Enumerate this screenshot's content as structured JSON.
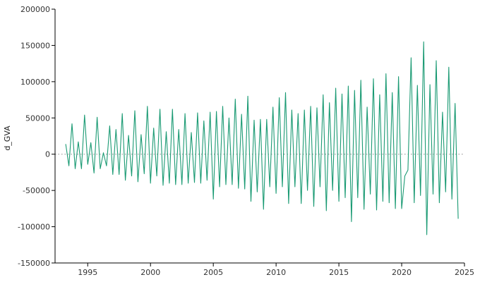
{
  "chart_data": {
    "type": "line",
    "title": "",
    "xlabel": "",
    "ylabel": "d_GVA",
    "xlim": [
      1992.4,
      2025.0
    ],
    "ylim": [
      -150000,
      200000
    ],
    "xticks": [
      1995,
      2000,
      2005,
      2010,
      2015,
      2020,
      2025
    ],
    "yticks": [
      -150000,
      -100000,
      -50000,
      0,
      50000,
      100000,
      150000,
      200000
    ],
    "zero_line": true,
    "grid": false,
    "line_color": "#1a9a73",
    "series": [
      {
        "x": [
          1993.25,
          1993.5,
          1993.75,
          1994.0,
          1994.25,
          1994.5,
          1994.75,
          1995.0,
          1995.25,
          1995.5,
          1995.75,
          1996.0,
          1996.25,
          1996.5,
          1996.75,
          1997.0,
          1997.25,
          1997.5,
          1997.75,
          1998.0,
          1998.25,
          1998.5,
          1998.75,
          1999.0,
          1999.25,
          1999.5,
          1999.75,
          2000.0,
          2000.25,
          2000.5,
          2000.75,
          2001.0,
          2001.25,
          2001.5,
          2001.75,
          2002.0,
          2002.25,
          2002.5,
          2002.75,
          2003.0,
          2003.25,
          2003.5,
          2003.75,
          2004.0,
          2004.25,
          2004.5,
          2004.75,
          2005.0,
          2005.25,
          2005.5,
          2005.75,
          2006.0,
          2006.25,
          2006.5,
          2006.75,
          2007.0,
          2007.25,
          2007.5,
          2007.75,
          2008.0,
          2008.25,
          2008.5,
          2008.75,
          2009.0,
          2009.25,
          2009.5,
          2009.75,
          2010.0,
          2010.25,
          2010.5,
          2010.75,
          2011.0,
          2011.25,
          2011.5,
          2011.75,
          2012.0,
          2012.25,
          2012.5,
          2012.75,
          2013.0,
          2013.25,
          2013.5,
          2013.75,
          2014.0,
          2014.25,
          2014.5,
          2014.75,
          2015.0,
          2015.25,
          2015.5,
          2015.75,
          2016.0,
          2016.25,
          2016.5,
          2016.75,
          2017.0,
          2017.25,
          2017.5,
          2017.75,
          2018.0,
          2018.25,
          2018.5,
          2018.75,
          2019.0,
          2019.25,
          2019.5,
          2019.75,
          2020.0,
          2020.25,
          2020.5,
          2020.75,
          2021.0,
          2021.25,
          2021.5,
          2021.75,
          2022.0,
          2022.25,
          2022.5,
          2022.75,
          2023.0,
          2023.25,
          2023.5,
          2023.75,
          2024.0,
          2024.25,
          2024.5
        ],
        "values": [
          14000,
          -16000,
          42000,
          -20000,
          17000,
          -20000,
          54000,
          -14000,
          16000,
          -26000,
          51000,
          -20000,
          2000,
          -16000,
          39000,
          -28000,
          34000,
          -28000,
          56000,
          -36000,
          26000,
          -30000,
          60000,
          -38000,
          27000,
          -27000,
          66000,
          -40000,
          36000,
          -30000,
          62000,
          -43000,
          31000,
          -40000,
          62000,
          -42000,
          34000,
          -42000,
          56000,
          -40000,
          30000,
          -39000,
          57000,
          -40000,
          46000,
          -36000,
          58000,
          -62000,
          59000,
          -45000,
          66000,
          -42000,
          50000,
          -42000,
          76000,
          -47000,
          55000,
          -48000,
          80000,
          -65000,
          47000,
          -52000,
          48000,
          -76000,
          48000,
          -45000,
          65000,
          -54000,
          78000,
          -45000,
          85000,
          -68000,
          61000,
          -45000,
          56000,
          -68000,
          61000,
          -50000,
          66000,
          -72000,
          64000,
          -45000,
          82000,
          -78000,
          71000,
          -50000,
          91000,
          -65000,
          83000,
          -60000,
          94000,
          -93000,
          88000,
          -60000,
          102000,
          -76000,
          65000,
          -55000,
          104000,
          -77000,
          82000,
          -65000,
          111000,
          -67000,
          85000,
          -75000,
          107000,
          -75000,
          -30000,
          -22000,
          133000,
          -67000,
          95000,
          -57000,
          155000,
          -111000,
          96000,
          -55000,
          129000,
          -67000,
          58000,
          -52000,
          120000,
          -62000,
          70000,
          -89000
        ]
      }
    ]
  }
}
